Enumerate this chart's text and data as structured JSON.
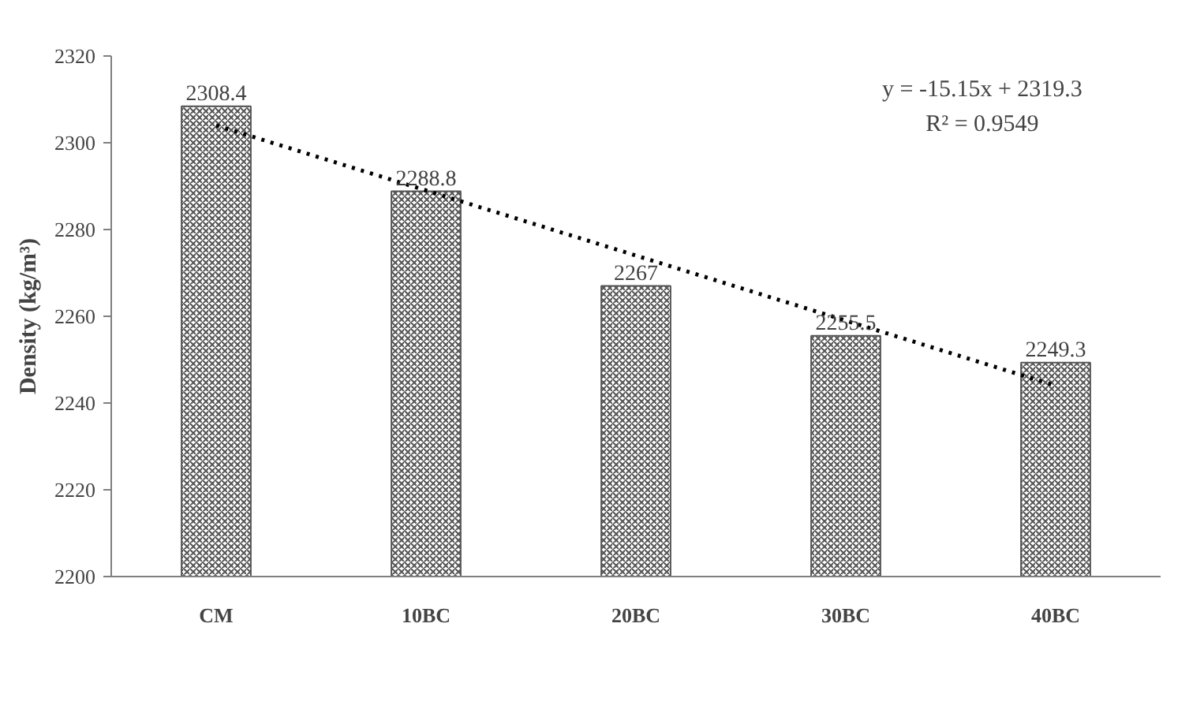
{
  "chart_data": {
    "type": "bar",
    "ylabel": "Density (kg/m³)",
    "categories": [
      "CM",
      "10BC",
      "20BC",
      "30BC",
      "40BC"
    ],
    "series": [
      {
        "color": "#555555",
        "values": [
          2308.4,
          2288.8,
          2267,
          2255.5,
          2249.3
        ],
        "value_labels": [
          "2308.4",
          "2288.8",
          "2267",
          "2255.5",
          "2249.3"
        ]
      },
      {
        "type": "line",
        "color": "#000000",
        "line_style": "dotted",
        "x": [
          "CM",
          "10BC",
          "20BC",
          "30BC",
          "40BC"
        ],
        "values": [
          2304,
          2289,
          2274,
          2259,
          2244
        ]
      }
    ],
    "ylim": [
      2200,
      2320
    ],
    "yticks": [
      2200,
      2220,
      2240,
      2260,
      2280,
      2300,
      2320
    ],
    "grid": false,
    "annotations": [
      "y = -15.15x + 2319.3",
      "R² = 0.9549"
    ]
  }
}
